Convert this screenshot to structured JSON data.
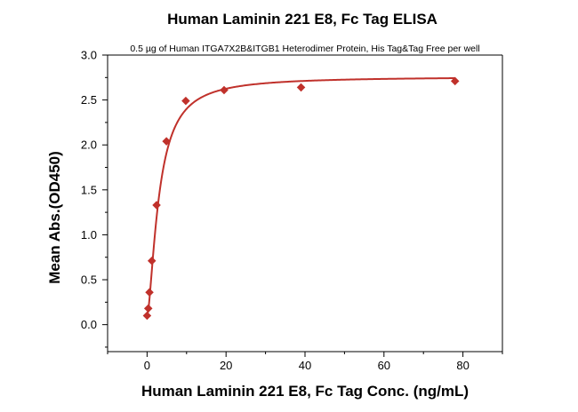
{
  "chart_data": {
    "type": "scatter",
    "title": "Human Laminin 221 E8, Fc Tag ELISA",
    "subtitle": "0.5 µg of Human ITGA7X2B&ITGB1 Heterodimer Protein, His Tag&Tag Free per well",
    "xlabel": "Human Laminin 221 E8, Fc Tag Conc. (ng/mL)",
    "ylabel": "Mean Abs.(OD450)",
    "xlim": [
      -10,
      90
    ],
    "ylim": [
      -0.3,
      3.0
    ],
    "x_ticks": [
      0,
      20,
      40,
      60,
      80
    ],
    "x_tick_labels": [
      "0",
      "20",
      "40",
      "60",
      "80"
    ],
    "y_ticks": [
      0.0,
      0.5,
      1.0,
      1.5,
      2.0,
      2.5,
      3.0
    ],
    "y_tick_labels": [
      "0.0",
      "0.5",
      "1.0",
      "1.5",
      "2.0",
      "2.5",
      "3.0"
    ],
    "grid": false,
    "legend": "none",
    "marker": "diamond",
    "color": "#c0312b",
    "series": [
      {
        "x": [
          0.0,
          0.3,
          0.6,
          1.2,
          2.4,
          4.9,
          9.8,
          19.5,
          39,
          78
        ],
        "y": [
          0.1,
          0.18,
          0.36,
          0.71,
          1.33,
          2.04,
          2.49,
          2.61,
          2.64,
          2.71
        ]
      }
    ],
    "fit_curve": {
      "type": "4PL",
      "bottom": 0.08,
      "top": 2.76,
      "ec50": 3.0,
      "hill": 1.55
    }
  }
}
